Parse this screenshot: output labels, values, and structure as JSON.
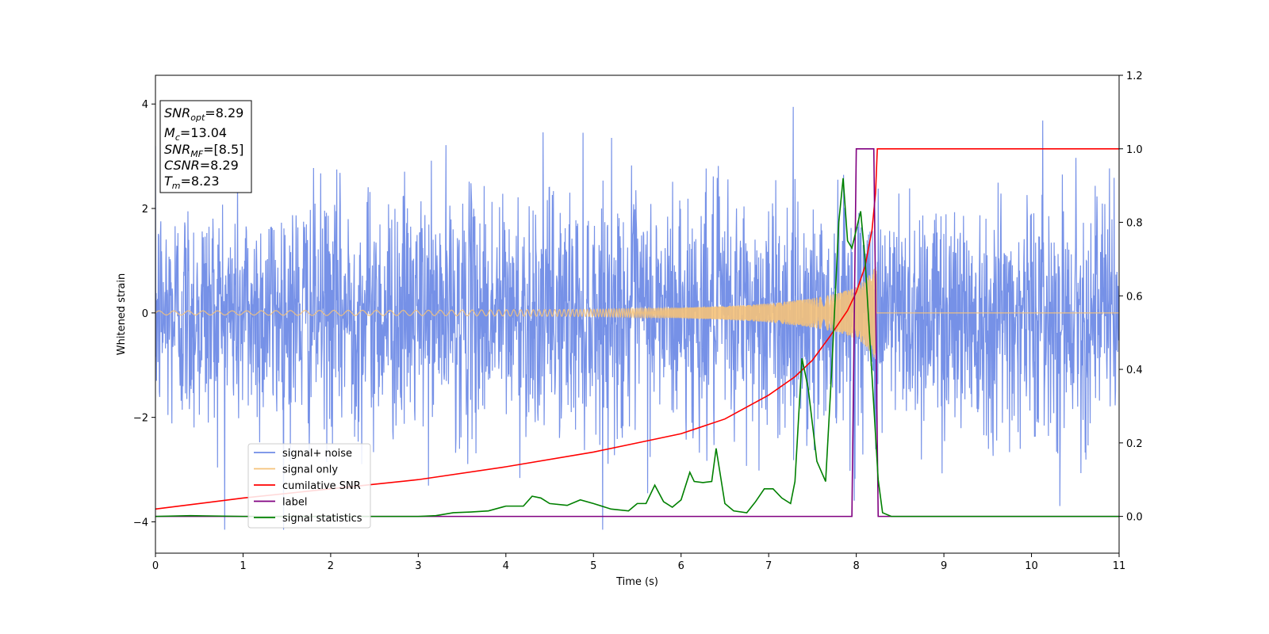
{
  "chart_data": {
    "type": "line",
    "xlabel": "Time (s)",
    "ylabel_left": "Whitened strain",
    "ylabel_right": "",
    "xlim": [
      0,
      11
    ],
    "ylim_left": [
      -4.6,
      4.55
    ],
    "ylim_right": [
      -0.1,
      1.2
    ],
    "x_ticks": [
      "0",
      "1",
      "2",
      "3",
      "4",
      "5",
      "6",
      "7",
      "8",
      "9",
      "10",
      "11"
    ],
    "y_ticks_left": [
      "−4",
      "−2",
      "0",
      "2",
      "4"
    ],
    "y_ticks_left_values": [
      -4,
      -2,
      0,
      2,
      4
    ],
    "y_ticks_right": [
      "0.0",
      "0.2",
      "0.4",
      "0.6",
      "0.8",
      "1.0",
      "1.2"
    ],
    "y_ticks_right_values": [
      0.0,
      0.2,
      0.4,
      0.6,
      0.8,
      1.0,
      1.2
    ],
    "annotation_lines": [
      {
        "base": "SNR",
        "sub": "opt",
        "value": "=8.29"
      },
      {
        "base": "M",
        "sub": "c",
        "value": "=13.04"
      },
      {
        "base": "SNR",
        "sub": "MF",
        "value": "=[8.5]"
      },
      {
        "base": "CSNR",
        "sub": "",
        "value": "=8.29"
      },
      {
        "base": "T",
        "sub": "m",
        "value": "=8.23"
      }
    ],
    "legend_position": "lower-left",
    "series": [
      {
        "name": "signal+ noise",
        "color": "#6f8be6",
        "axis": "left",
        "description_values": "noise around 0, amplitude within approx -4.1 to 4.1",
        "noise_amplitude_std": 1.15,
        "x_range": [
          0,
          11
        ]
      },
      {
        "name": "signal only",
        "color": "#f5c27a",
        "axis": "left",
        "x_range": [
          0,
          8.23
        ],
        "envelope": {
          "x": [
            0,
            1,
            2,
            3,
            4,
            5,
            6,
            6.5,
            7,
            7.5,
            7.8,
            8.0,
            8.1,
            8.2,
            8.23
          ],
          "amp": [
            0.04,
            0.04,
            0.05,
            0.05,
            0.06,
            0.07,
            0.1,
            0.13,
            0.18,
            0.28,
            0.38,
            0.5,
            0.62,
            0.85,
            0.92
          ]
        }
      },
      {
        "name": "cumilative SNR",
        "color": "#ff0000",
        "axis": "right",
        "points": [
          [
            0,
            0.02
          ],
          [
            1,
            0.05
          ],
          [
            2,
            0.075
          ],
          [
            3,
            0.1
          ],
          [
            4,
            0.135
          ],
          [
            5,
            0.175
          ],
          [
            5.5,
            0.2
          ],
          [
            6,
            0.225
          ],
          [
            6.5,
            0.265
          ],
          [
            7,
            0.33
          ],
          [
            7.3,
            0.38
          ],
          [
            7.5,
            0.425
          ],
          [
            7.7,
            0.49
          ],
          [
            7.9,
            0.56
          ],
          [
            8.0,
            0.61
          ],
          [
            8.1,
            0.68
          ],
          [
            8.18,
            0.78
          ],
          [
            8.22,
            0.88
          ],
          [
            8.24,
            1.0
          ],
          [
            11,
            1.0
          ]
        ]
      },
      {
        "name": "label",
        "color": "#800080",
        "axis": "right",
        "points": [
          [
            0,
            0.0
          ],
          [
            7.95,
            0.0
          ],
          [
            8.0,
            1.0
          ],
          [
            8.2,
            1.0
          ],
          [
            8.25,
            0.0
          ],
          [
            11,
            0.0
          ]
        ]
      },
      {
        "name": "signal statistics",
        "color": "#008000",
        "axis": "right",
        "points": [
          [
            0,
            0.0
          ],
          [
            0.4,
            0.002
          ],
          [
            1,
            0.0
          ],
          [
            2,
            0.0
          ],
          [
            3,
            0.0
          ],
          [
            3.2,
            0.002
          ],
          [
            3.4,
            0.01
          ],
          [
            3.6,
            0.012
          ],
          [
            3.8,
            0.015
          ],
          [
            4.0,
            0.028
          ],
          [
            4.2,
            0.028
          ],
          [
            4.3,
            0.055
          ],
          [
            4.4,
            0.05
          ],
          [
            4.5,
            0.035
          ],
          [
            4.7,
            0.03
          ],
          [
            4.85,
            0.045
          ],
          [
            5.0,
            0.035
          ],
          [
            5.2,
            0.02
          ],
          [
            5.4,
            0.015
          ],
          [
            5.5,
            0.035
          ],
          [
            5.6,
            0.035
          ],
          [
            5.7,
            0.085
          ],
          [
            5.8,
            0.04
          ],
          [
            5.9,
            0.025
          ],
          [
            6.0,
            0.045
          ],
          [
            6.1,
            0.12
          ],
          [
            6.15,
            0.095
          ],
          [
            6.25,
            0.092
          ],
          [
            6.35,
            0.095
          ],
          [
            6.4,
            0.185
          ],
          [
            6.5,
            0.035
          ],
          [
            6.6,
            0.015
          ],
          [
            6.75,
            0.01
          ],
          [
            6.85,
            0.04
          ],
          [
            6.95,
            0.075
          ],
          [
            7.05,
            0.075
          ],
          [
            7.15,
            0.05
          ],
          [
            7.25,
            0.035
          ],
          [
            7.3,
            0.095
          ],
          [
            7.38,
            0.43
          ],
          [
            7.45,
            0.35
          ],
          [
            7.55,
            0.15
          ],
          [
            7.65,
            0.095
          ],
          [
            7.72,
            0.4
          ],
          [
            7.8,
            0.8
          ],
          [
            7.85,
            0.92
          ],
          [
            7.9,
            0.75
          ],
          [
            7.95,
            0.73
          ],
          [
            8.05,
            0.83
          ],
          [
            8.1,
            0.7
          ],
          [
            8.2,
            0.3
          ],
          [
            8.25,
            0.1
          ],
          [
            8.3,
            0.01
          ],
          [
            8.4,
            0.0
          ],
          [
            11,
            0.0
          ]
        ]
      }
    ]
  }
}
